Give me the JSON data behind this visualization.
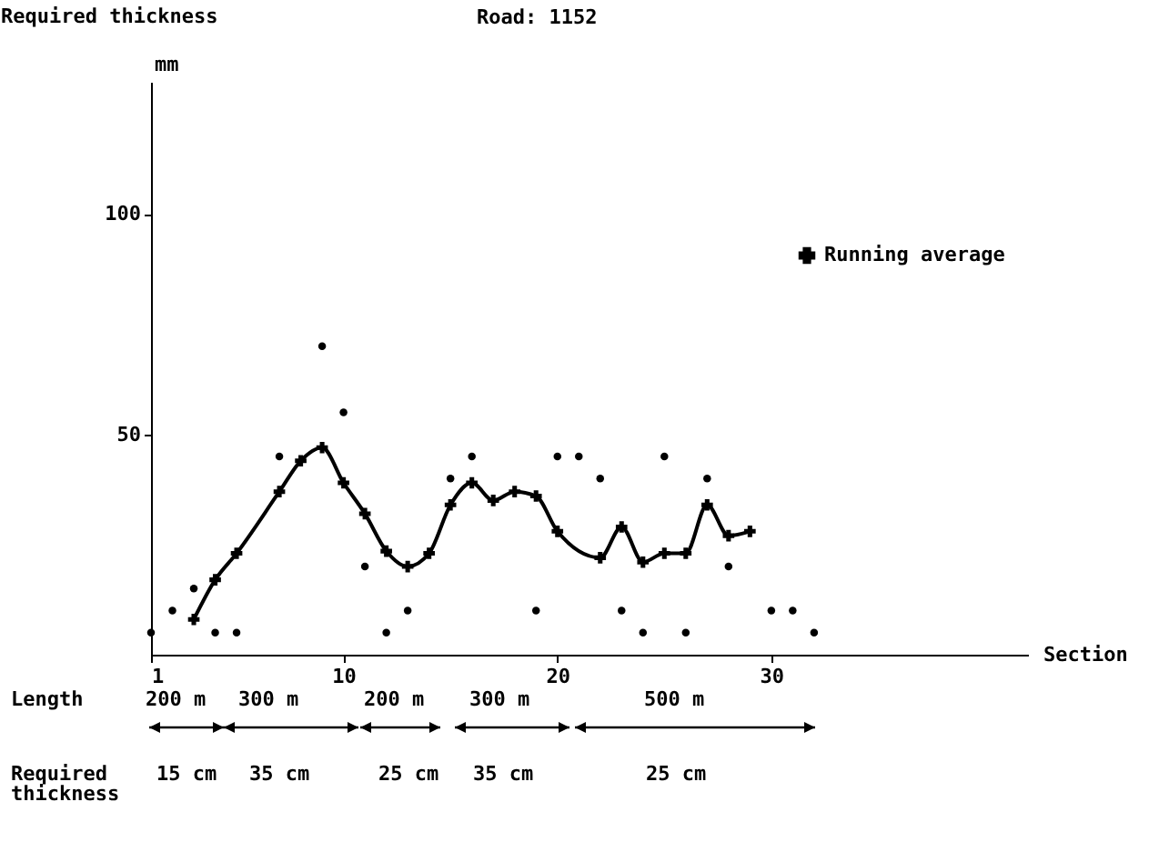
{
  "chart_data": {
    "type": "scatter",
    "title": "Road: 1152",
    "ylabel": "Required thickness",
    "xlabel": "Section",
    "annotations": [
      "mm",
      "Length",
      "200 m",
      "300 m",
      "200 m",
      "300 m",
      "500 m",
      "Required thickness",
      "15 cm",
      "35 cm",
      "25 cm",
      "35 cm",
      "25 cm"
    ],
    "xlim": [
      1,
      42
    ],
    "xticks": [
      1,
      10,
      20,
      30
    ],
    "ylim": [
      0,
      130
    ],
    "yticks": [
      50,
      100
    ],
    "grid": false,
    "legend": "right",
    "series": [
      {
        "type": "scatter",
        "color": "#000000",
        "marker": "circle",
        "x": [
          1,
          2,
          3,
          4,
          5,
          7,
          9,
          10,
          11,
          12,
          13,
          15,
          16,
          19,
          20,
          21,
          22,
          23,
          24,
          25,
          26,
          27,
          28,
          30,
          31,
          32
        ],
        "values": [
          5,
          10,
          15,
          5,
          5,
          45,
          70,
          55,
          20,
          5,
          10,
          40,
          45,
          10,
          45,
          45,
          40,
          10,
          5,
          45,
          5,
          40,
          20,
          10,
          10,
          5
        ]
      },
      {
        "type": "line",
        "name": "Running average",
        "color": "#000000",
        "marker": "cross",
        "x": [
          3,
          4,
          5,
          7,
          8,
          9,
          10,
          11,
          12,
          13,
          14,
          15,
          16,
          17,
          18,
          19,
          20,
          22,
          23,
          24,
          25,
          26,
          27,
          28,
          29
        ],
        "values": [
          8,
          17,
          23,
          37,
          44,
          47,
          39,
          32,
          23.5,
          20,
          23,
          34,
          39,
          35,
          37,
          36,
          28,
          22,
          29,
          21,
          23,
          23,
          34,
          27,
          28
        ]
      }
    ]
  }
}
